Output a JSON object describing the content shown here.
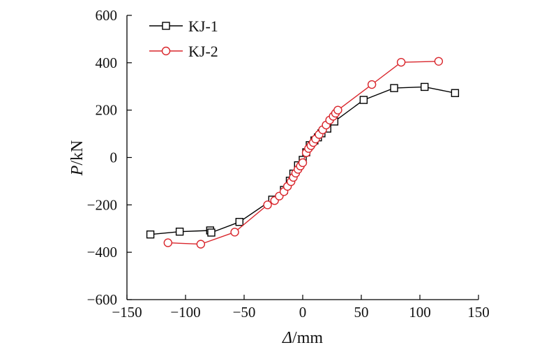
{
  "chart_data": {
    "type": "line",
    "xlabel": {
      "symbol": "Δ",
      "unit": "/mm"
    },
    "ylabel": {
      "symbol": "P",
      "unit": "/kN"
    },
    "xlim": [
      -150,
      150
    ],
    "ylim": [
      -600,
      600
    ],
    "xticks": [
      -150,
      -100,
      -50,
      0,
      50,
      100,
      150
    ],
    "yticks": [
      -600,
      -400,
      -200,
      0,
      200,
      400,
      600
    ],
    "xtick_labels": [
      "−150",
      "−100",
      "−50",
      "0",
      "50",
      "100",
      "150"
    ],
    "ytick_labels": [
      "−600",
      "−400",
      "−200",
      "0",
      "200",
      "400",
      "600"
    ],
    "grid": false,
    "legend_position": "top-left",
    "series": [
      {
        "name": "KJ-1",
        "color": "#000000",
        "marker": "square",
        "x": [
          -130,
          -105,
          -79,
          -78,
          -54,
          -26,
          -16,
          -11,
          -8,
          -4,
          0,
          3,
          6,
          10,
          13,
          16,
          21,
          27,
          52,
          78,
          104,
          130
        ],
        "y": [
          -325,
          -313,
          -308,
          -317,
          -272,
          -178,
          -137,
          -98,
          -68,
          -33,
          -10,
          22,
          52,
          72,
          85,
          102,
          122,
          152,
          243,
          293,
          298,
          272
        ]
      },
      {
        "name": "KJ-2",
        "color": "#d9262c",
        "marker": "circle",
        "x": [
          -115,
          -87,
          -58,
          -30,
          -24,
          -20,
          -16,
          -13,
          -10,
          -8,
          -6,
          -4,
          -2,
          0,
          3,
          5,
          7,
          9,
          11,
          14,
          17,
          20,
          23,
          26,
          28,
          30,
          59,
          84,
          116
        ],
        "y": [
          -360,
          -366,
          -315,
          -200,
          -182,
          -163,
          -144,
          -122,
          -102,
          -84,
          -66,
          -50,
          -36,
          -22,
          20,
          38,
          50,
          63,
          78,
          97,
          117,
          137,
          158,
          174,
          187,
          200,
          308,
          402,
          406
        ]
      }
    ]
  }
}
